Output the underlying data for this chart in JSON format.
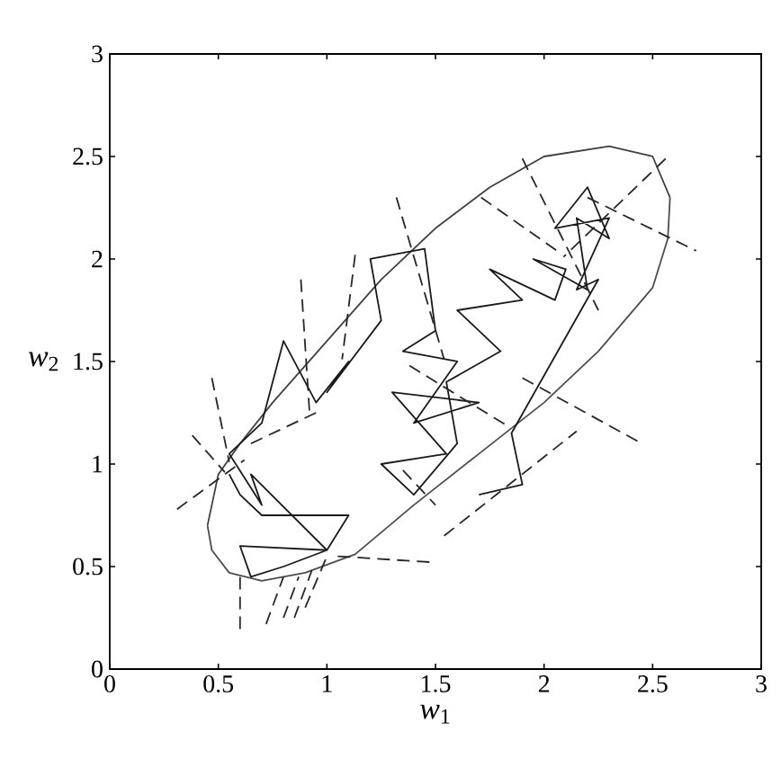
{
  "chart_data": {
    "type": "line",
    "xlabel": "*w*$_{1}$",
    "ylabel": "*w*$_{2}$",
    "xlim": [
      0,
      3
    ],
    "ylim": [
      0,
      3
    ],
    "xticks": [
      0,
      0.5,
      1,
      1.5,
      2,
      2.5,
      3
    ],
    "yticks": [
      0,
      0.5,
      1,
      1.5,
      2,
      2.5,
      3
    ],
    "grid": false,
    "marker": "none",
    "series": [
      {
        "color": "#404040",
        "line_style": "solid",
        "x": [
          0.45,
          0.5,
          0.6,
          0.75,
          1.0,
          1.25,
          1.5,
          1.75,
          2.0,
          2.3,
          2.5,
          2.58
        ],
        "values": [
          0.7,
          0.95,
          1.1,
          1.3,
          1.6,
          1.9,
          2.15,
          2.35,
          2.5,
          2.55,
          2.5,
          2.3
        ]
      },
      {
        "color": "#4d4d4d",
        "line_style": "solid",
        "x": [
          0.45,
          0.47,
          0.55,
          0.7,
          0.9,
          1.13,
          1.4,
          1.7,
          2.0,
          2.25,
          2.5,
          2.57,
          2.58
        ],
        "values": [
          0.7,
          0.58,
          0.47,
          0.43,
          0.47,
          0.56,
          0.8,
          1.05,
          1.3,
          1.55,
          1.86,
          2.1,
          2.3
        ]
      },
      {
        "color": "#1a1a1a",
        "line_style": "solid",
        "x": [
          0.55,
          0.6,
          0.7,
          1.1,
          1.0,
          0.6,
          0.65,
          0.8,
          1.0,
          0.65,
          0.7,
          0.55,
          0.7,
          0.8,
          0.95,
          1.1,
          1.0,
          1.25,
          1.2,
          1.45,
          1.5,
          1.35,
          1.6,
          1.4,
          1.7,
          1.3,
          1.55,
          1.25,
          1.4,
          1.6,
          1.55,
          1.8,
          1.6,
          1.9,
          1.75,
          2.05,
          2.1,
          1.95,
          2.2,
          2.15,
          2.3,
          2.2,
          2.05,
          2.3,
          2.15,
          2.25,
          1.85,
          1.9,
          1.7
        ],
        "values": [
          0.95,
          0.85,
          0.75,
          0.75,
          0.58,
          0.6,
          0.45,
          0.5,
          0.58,
          0.95,
          0.8,
          1.05,
          1.2,
          1.6,
          1.3,
          1.5,
          1.35,
          1.7,
          2.0,
          2.05,
          1.65,
          1.55,
          1.5,
          1.2,
          1.3,
          1.35,
          1.05,
          1.0,
          0.85,
          1.1,
          1.4,
          1.55,
          1.75,
          1.8,
          1.95,
          1.8,
          1.95,
          2.0,
          1.85,
          2.2,
          2.1,
          2.35,
          2.15,
          2.2,
          1.85,
          1.9,
          1.15,
          0.9,
          0.85
        ]
      },
      {
        "color": "#262626",
        "line_style": "dashed",
        "x": [
          0.31,
          0.62,
          null,
          0.38,
          0.53,
          null,
          0.47,
          0.55,
          null,
          0.6,
          0.6,
          null,
          0.72,
          0.8,
          null,
          0.8,
          0.87,
          null,
          0.85,
          0.93,
          null,
          0.9,
          1.0,
          null,
          1.05,
          1.5,
          null,
          1.54,
          2.15,
          null,
          1.9,
          2.45,
          null,
          0.65,
          0.95,
          null,
          0.88,
          0.92,
          null,
          1.13,
          1.07,
          null,
          1.32,
          1.54,
          null,
          1.71,
          2.06,
          null,
          1.9,
          2.25,
          null,
          2.56,
          2.09,
          null,
          2.2,
          2.7,
          null,
          1.38,
          1.84,
          null,
          1.35,
          1.5
        ],
        "values": [
          0.78,
          1.02,
          null,
          1.14,
          0.96,
          null,
          1.42,
          1.01,
          null,
          0.45,
          0.18,
          null,
          0.22,
          0.45,
          null,
          0.25,
          0.45,
          null,
          0.25,
          0.48,
          null,
          0.3,
          0.55,
          null,
          0.55,
          0.52,
          null,
          0.65,
          1.16,
          null,
          1.42,
          1.1,
          null,
          1.1,
          1.25,
          null,
          1.9,
          1.25,
          null,
          2.02,
          1.51,
          null,
          2.3,
          1.51,
          null,
          2.3,
          2.04,
          null,
          2.49,
          1.75,
          null,
          2.49,
          2.01,
          null,
          2.3,
          2.04,
          null,
          1.48,
          1.18,
          null,
          0.97,
          0.8
        ]
      }
    ]
  }
}
